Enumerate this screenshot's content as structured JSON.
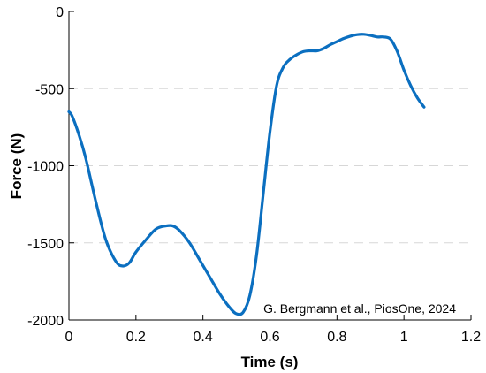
{
  "chart_data": {
    "type": "line",
    "title": "",
    "xlabel": "Time (s)",
    "ylabel": "Force (N)",
    "xlim": [
      0,
      1.2
    ],
    "ylim": [
      -2000,
      0
    ],
    "xticks": [
      0,
      0.2,
      0.4,
      0.6,
      0.8,
      1,
      1.2
    ],
    "xtick_labels": [
      "0",
      "0.2",
      "0.4",
      "0.6",
      "0.8",
      "1",
      "1.2"
    ],
    "yticks": [
      0,
      -500,
      -1000,
      -1500,
      -2000
    ],
    "ytick_labels": [
      "0",
      "-500",
      "-1000",
      "-1500",
      "-2000"
    ],
    "grid": {
      "y": true,
      "x": false,
      "style": "dashed"
    },
    "annotation": "G. Bergmann et al., PiosOne, 2024",
    "series": [
      {
        "color": "#0b6fc0",
        "x": [
          0,
          0.01,
          0.03,
          0.05,
          0.08,
          0.11,
          0.14,
          0.16,
          0.18,
          0.2,
          0.23,
          0.26,
          0.29,
          0.31,
          0.33,
          0.36,
          0.39,
          0.42,
          0.45,
          0.48,
          0.5,
          0.52,
          0.54,
          0.56,
          0.58,
          0.6,
          0.62,
          0.64,
          0.66,
          0.68,
          0.7,
          0.72,
          0.74,
          0.76,
          0.78,
          0.8,
          0.82,
          0.84,
          0.86,
          0.88,
          0.9,
          0.92,
          0.94,
          0.96,
          0.98,
          1.0,
          1.02,
          1.04,
          1.06
        ],
        "y": [
          -650,
          -680,
          -800,
          -950,
          -1230,
          -1480,
          -1620,
          -1650,
          -1630,
          -1560,
          -1480,
          -1410,
          -1390,
          -1390,
          -1420,
          -1500,
          -1610,
          -1720,
          -1830,
          -1920,
          -1960,
          -1950,
          -1840,
          -1580,
          -1180,
          -780,
          -480,
          -360,
          -310,
          -280,
          -260,
          -255,
          -255,
          -240,
          -215,
          -195,
          -175,
          -160,
          -150,
          -148,
          -155,
          -165,
          -165,
          -180,
          -260,
          -380,
          -480,
          -560,
          -620
        ]
      }
    ]
  }
}
